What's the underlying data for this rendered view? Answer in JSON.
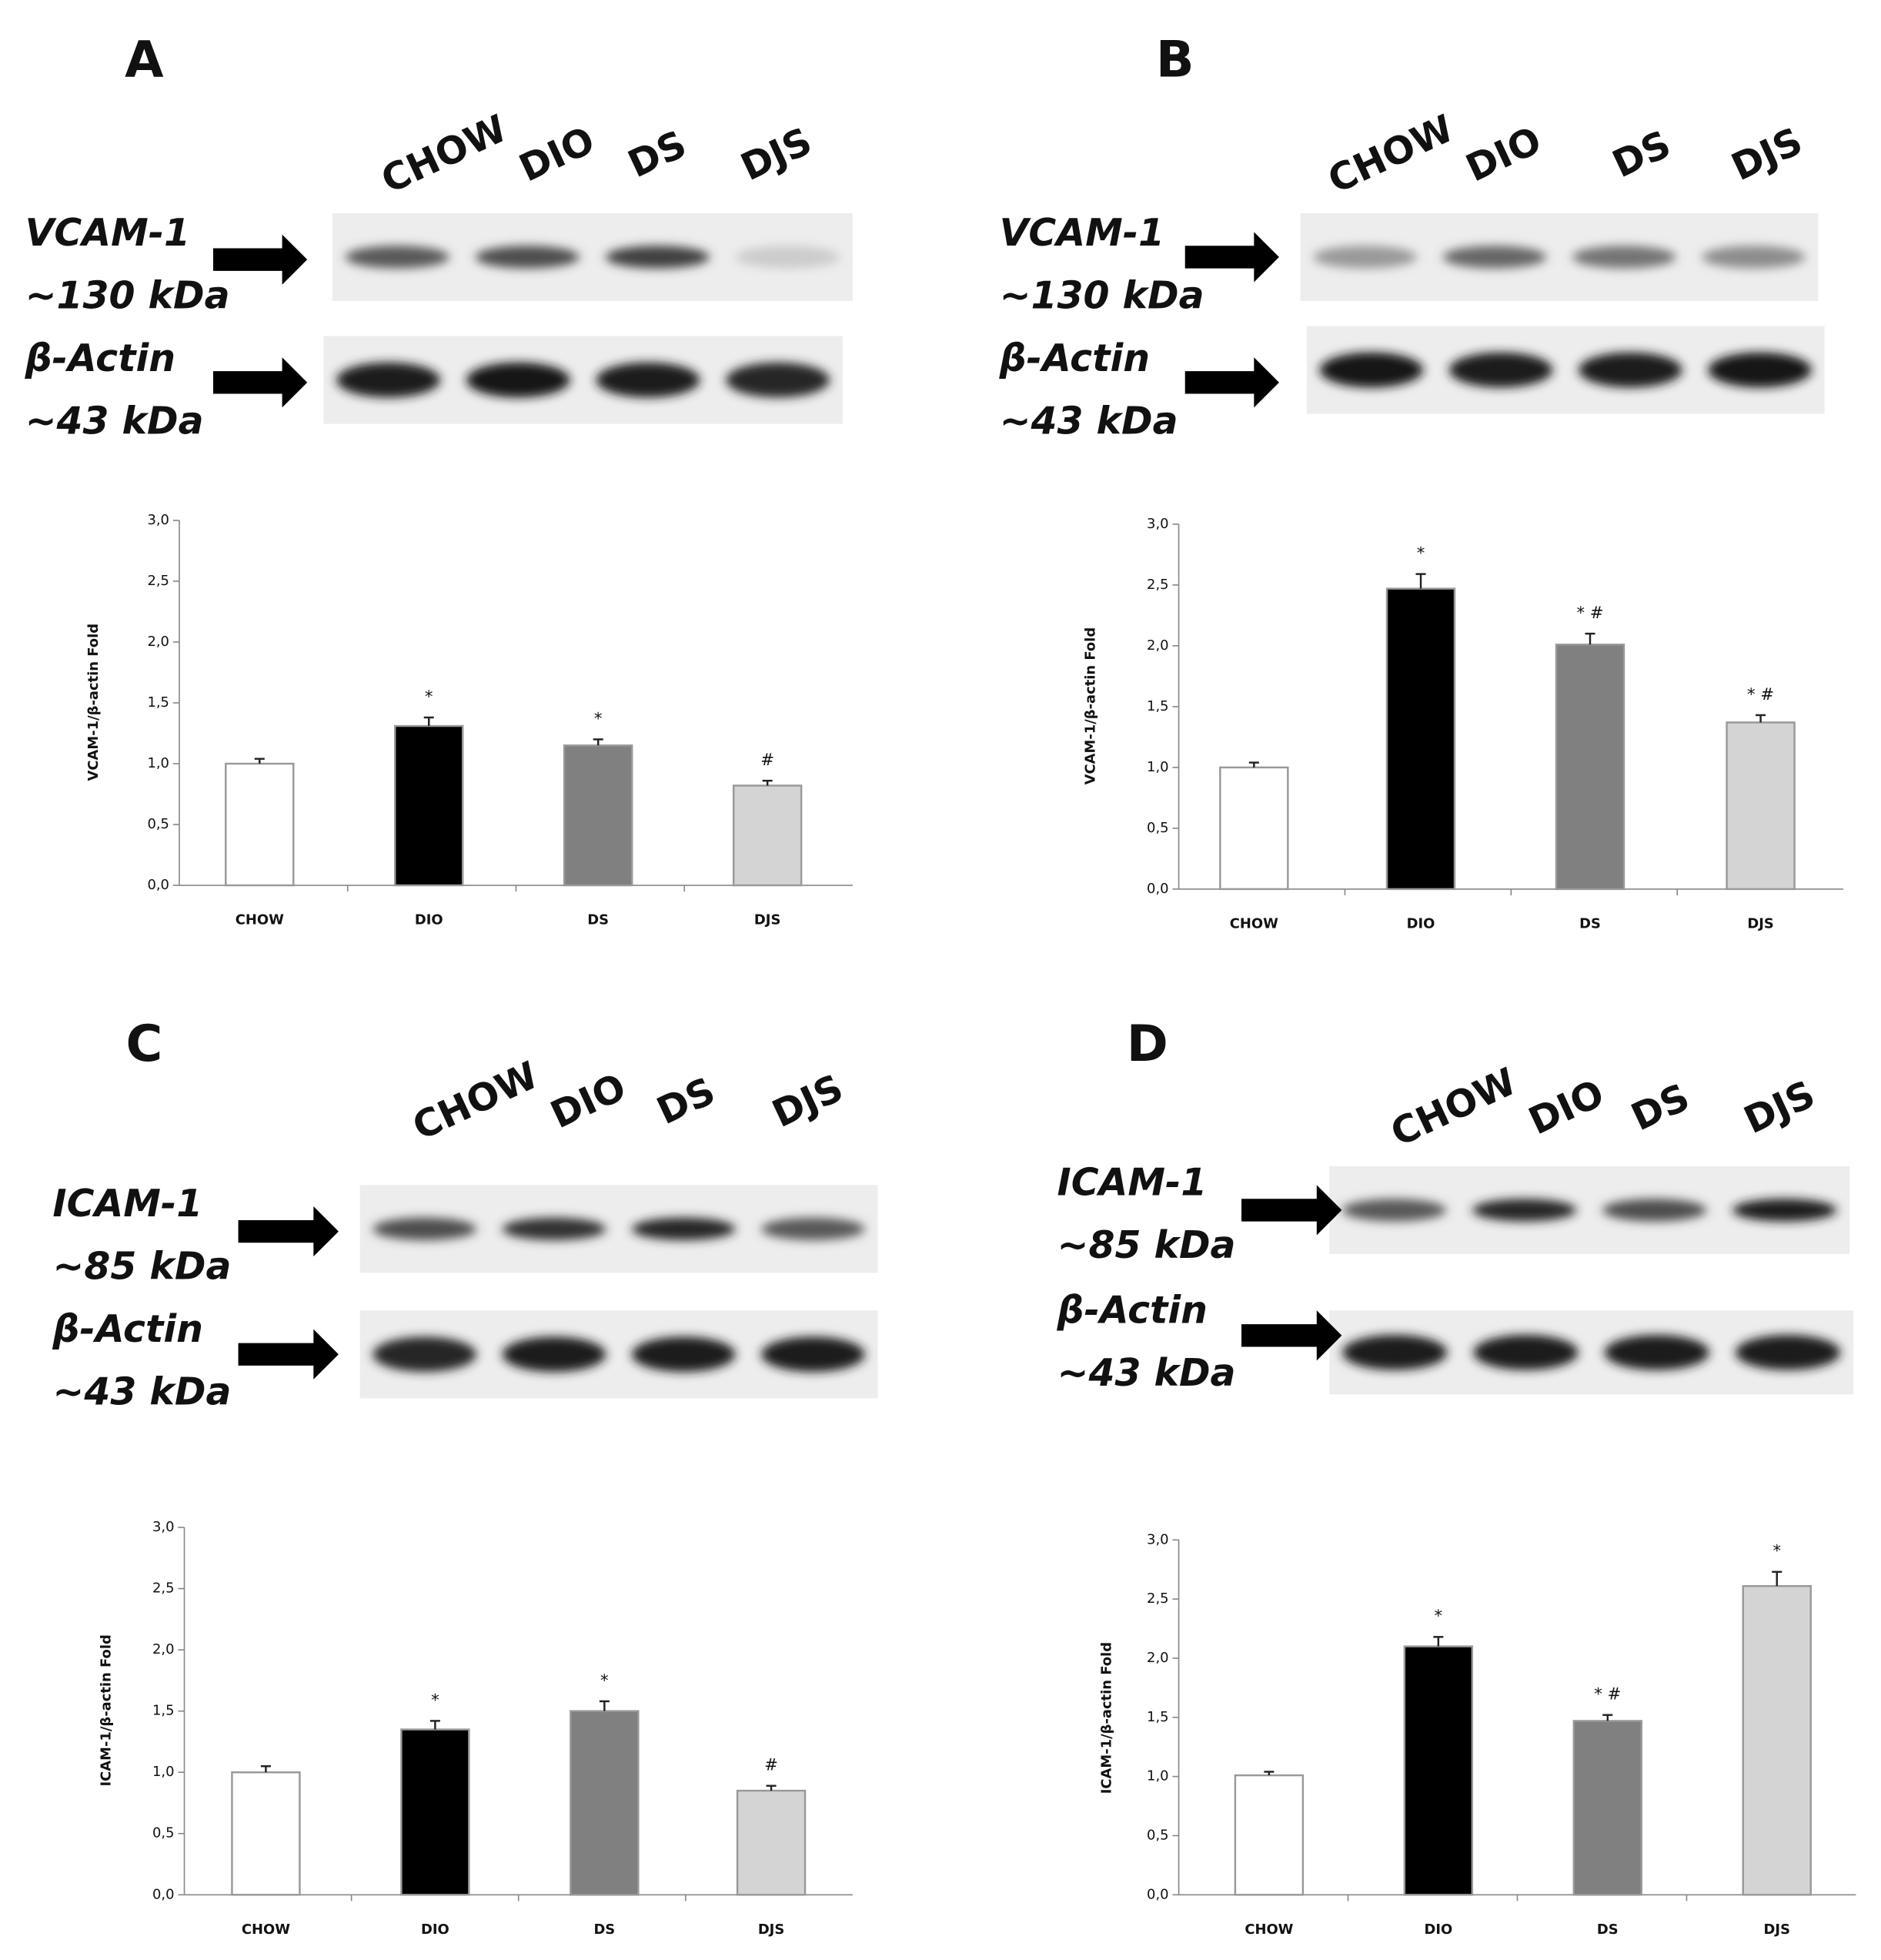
{
  "chart_data": [
    {
      "type": "bar",
      "panel": "A",
      "blot": {
        "lanes": [
          "CHOW",
          "DIO",
          "DS",
          "DJS"
        ],
        "rows": [
          {
            "protein": "VCAM-1",
            "size": "~130 kDa"
          },
          {
            "protein": "β-Actin",
            "size": "~43 kDa"
          }
        ]
      },
      "ylabel": "VCAM-1/β-actin Fold",
      "categories": [
        "CHOW",
        "DIO",
        "DS",
        "DJS"
      ],
      "values": [
        1.0,
        1.31,
        1.15,
        0.82
      ],
      "errors": [
        0.04,
        0.07,
        0.05,
        0.04
      ],
      "annotations": [
        null,
        "*",
        "*",
        "#"
      ],
      "colors": [
        "#ffffff",
        "#000000",
        "#808080",
        "#d4d4d4"
      ],
      "ylim": [
        0,
        3
      ],
      "yticks": [
        {
          "value": 0,
          "label": "0,0"
        },
        {
          "value": 0.5,
          "label": "0,5"
        },
        {
          "value": 1,
          "label": "1,0"
        },
        {
          "value": 1.5,
          "label": "1,5"
        },
        {
          "value": 2,
          "label": "2,0"
        },
        {
          "value": 2.5,
          "label": "2,5"
        },
        {
          "value": 3,
          "label": "3,0"
        }
      ]
    },
    {
      "type": "bar",
      "panel": "B",
      "blot": {
        "lanes": [
          "CHOW",
          "DIO",
          "DS",
          "DJS"
        ],
        "rows": [
          {
            "protein": "VCAM-1",
            "size": "~130 kDa"
          },
          {
            "protein": "β-Actin",
            "size": "~43 kDa"
          }
        ]
      },
      "ylabel": "VCAM-1/β-actin Fold",
      "categories": [
        "CHOW",
        "DIO",
        "DS",
        "DJS"
      ],
      "values": [
        1.0,
        2.47,
        2.01,
        1.37
      ],
      "errors": [
        0.04,
        0.12,
        0.09,
        0.06
      ],
      "annotations": [
        null,
        "*",
        "* #",
        "* #"
      ],
      "colors": [
        "#ffffff",
        "#000000",
        "#808080",
        "#d4d4d4"
      ],
      "ylim": [
        0,
        3
      ],
      "yticks": [
        {
          "value": 0,
          "label": "0,0"
        },
        {
          "value": 0.5,
          "label": "0,5"
        },
        {
          "value": 1,
          "label": "1,0"
        },
        {
          "value": 1.5,
          "label": "1,5"
        },
        {
          "value": 2,
          "label": "2,0"
        },
        {
          "value": 2.5,
          "label": "2,5"
        },
        {
          "value": 3,
          "label": "3,0"
        }
      ]
    },
    {
      "type": "bar",
      "panel": "C",
      "blot": {
        "lanes": [
          "CHOW",
          "DIO",
          "DS",
          "DJS"
        ],
        "rows": [
          {
            "protein": "ICAM-1",
            "size": "~85 kDa"
          },
          {
            "protein": "β-Actin",
            "size": "~43 kDa"
          }
        ]
      },
      "ylabel": "ICAM-1/β-actin Fold",
      "categories": [
        "CHOW",
        "DIO",
        "DS",
        "DJS"
      ],
      "values": [
        1.0,
        1.35,
        1.5,
        0.85
      ],
      "errors": [
        0.05,
        0.07,
        0.08,
        0.04
      ],
      "annotations": [
        null,
        "*",
        "*",
        "#"
      ],
      "colors": [
        "#ffffff",
        "#000000",
        "#808080",
        "#d4d4d4"
      ],
      "ylim": [
        0,
        3
      ],
      "yticks": [
        {
          "value": 0,
          "label": "0,0"
        },
        {
          "value": 0.5,
          "label": "0,5"
        },
        {
          "value": 1,
          "label": "1,0"
        },
        {
          "value": 1.5,
          "label": "1,5"
        },
        {
          "value": 2,
          "label": "2,0"
        },
        {
          "value": 2.5,
          "label": "2,5"
        },
        {
          "value": 3,
          "label": "3,0"
        }
      ]
    },
    {
      "type": "bar",
      "panel": "D",
      "blot": {
        "lanes": [
          "CHOW",
          "DIO",
          "DS",
          "DJS"
        ],
        "rows": [
          {
            "protein": "ICAM-1",
            "size": "~85 kDa"
          },
          {
            "protein": "β-Actin",
            "size": "~43 kDa"
          }
        ]
      },
      "ylabel": "ICAM-1/β-actin Fold",
      "categories": [
        "CHOW",
        "DIO",
        "DS",
        "DJS"
      ],
      "values": [
        1.01,
        2.1,
        1.47,
        2.61
      ],
      "errors": [
        0.03,
        0.08,
        0.05,
        0.12
      ],
      "annotations": [
        null,
        "*",
        "* #",
        "*"
      ],
      "colors": [
        "#ffffff",
        "#000000",
        "#808080",
        "#d4d4d4"
      ],
      "ylim": [
        0,
        3
      ],
      "yticks": [
        {
          "value": 0,
          "label": "0,0"
        },
        {
          "value": 0.5,
          "label": "0,5"
        },
        {
          "value": 1,
          "label": "1,0"
        },
        {
          "value": 1.5,
          "label": "1,5"
        },
        {
          "value": 2,
          "label": "2,0"
        },
        {
          "value": 2.5,
          "label": "2,5"
        },
        {
          "value": 3,
          "label": "3,0"
        }
      ]
    }
  ]
}
